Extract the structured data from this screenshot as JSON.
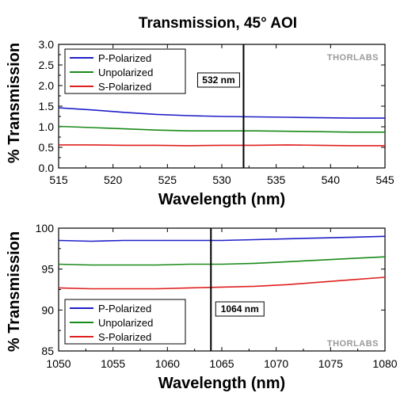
{
  "title": "Transmission, 45° AOI",
  "watermark": "THORLABS",
  "colors": {
    "p_polarized": "#1f1fc8",
    "unpolarized": "#1a8a1a",
    "s_polarized": "#e01f1f",
    "marker": "#000000"
  },
  "chart_data": [
    {
      "type": "line",
      "xlabel": "Wavelength (nm)",
      "ylabel": "% Transmission",
      "xlim": [
        515,
        545
      ],
      "ylim": [
        0.0,
        3.0
      ],
      "xticks": [
        515,
        520,
        525,
        530,
        535,
        540,
        545
      ],
      "xtick_labels": [
        "515",
        "520",
        "525",
        "530",
        "535",
        "540",
        "545"
      ],
      "yticks": [
        0.0,
        0.5,
        1.0,
        1.5,
        2.0,
        2.5,
        3.0
      ],
      "ytick_labels": [
        "0.0",
        "0.5",
        "1.0",
        "1.5",
        "2.0",
        "2.5",
        "3.0"
      ],
      "grid": false,
      "legend_position": "top-left",
      "marker": {
        "x": 532,
        "label": "532 nm"
      },
      "series": [
        {
          "name": "P-Polarized",
          "color_key": "p_polarized",
          "x": [
            515,
            518,
            521,
            524,
            527,
            530,
            533,
            536,
            539,
            542,
            545
          ],
          "y": [
            1.46,
            1.41,
            1.35,
            1.3,
            1.27,
            1.25,
            1.24,
            1.23,
            1.22,
            1.21,
            1.21
          ]
        },
        {
          "name": "Unpolarized",
          "color_key": "unpolarized",
          "x": [
            515,
            518,
            521,
            524,
            527,
            530,
            533,
            536,
            539,
            542,
            545
          ],
          "y": [
            1.01,
            0.98,
            0.95,
            0.92,
            0.9,
            0.9,
            0.9,
            0.89,
            0.88,
            0.87,
            0.87
          ]
        },
        {
          "name": "S-Polarized",
          "color_key": "s_polarized",
          "x": [
            515,
            518,
            521,
            524,
            527,
            530,
            533,
            536,
            539,
            542,
            545
          ],
          "y": [
            0.56,
            0.56,
            0.55,
            0.55,
            0.54,
            0.55,
            0.55,
            0.56,
            0.55,
            0.54,
            0.54
          ]
        }
      ]
    },
    {
      "type": "line",
      "xlabel": "Wavelength (nm)",
      "ylabel": "% Transmission",
      "xlim": [
        1050,
        1080
      ],
      "ylim": [
        85,
        100
      ],
      "xticks": [
        1050,
        1055,
        1060,
        1065,
        1070,
        1075,
        1080
      ],
      "xtick_labels": [
        "1050",
        "1055",
        "1060",
        "1065",
        "1070",
        "1075",
        "1080"
      ],
      "yticks": [
        85,
        90,
        95,
        100
      ],
      "ytick_labels": [
        "85",
        "90",
        "95",
        "100"
      ],
      "grid": false,
      "legend_position": "bottom-left",
      "marker": {
        "x": 1064,
        "label": "1064 nm"
      },
      "series": [
        {
          "name": "P-Polarized",
          "color_key": "p_polarized",
          "x": [
            1050,
            1053,
            1056,
            1059,
            1062,
            1065,
            1068,
            1071,
            1074,
            1077,
            1080
          ],
          "y": [
            98.5,
            98.4,
            98.5,
            98.5,
            98.5,
            98.5,
            98.6,
            98.7,
            98.8,
            98.9,
            99.0
          ]
        },
        {
          "name": "Unpolarized",
          "color_key": "unpolarized",
          "x": [
            1050,
            1053,
            1056,
            1059,
            1062,
            1065,
            1068,
            1071,
            1074,
            1077,
            1080
          ],
          "y": [
            95.6,
            95.5,
            95.5,
            95.5,
            95.6,
            95.6,
            95.7,
            95.9,
            96.1,
            96.3,
            96.5
          ]
        },
        {
          "name": "S-Polarized",
          "color_key": "s_polarized",
          "x": [
            1050,
            1053,
            1056,
            1059,
            1062,
            1065,
            1068,
            1071,
            1074,
            1077,
            1080
          ],
          "y": [
            92.7,
            92.6,
            92.6,
            92.6,
            92.7,
            92.8,
            92.9,
            93.1,
            93.4,
            93.7,
            94.0
          ]
        }
      ]
    }
  ]
}
